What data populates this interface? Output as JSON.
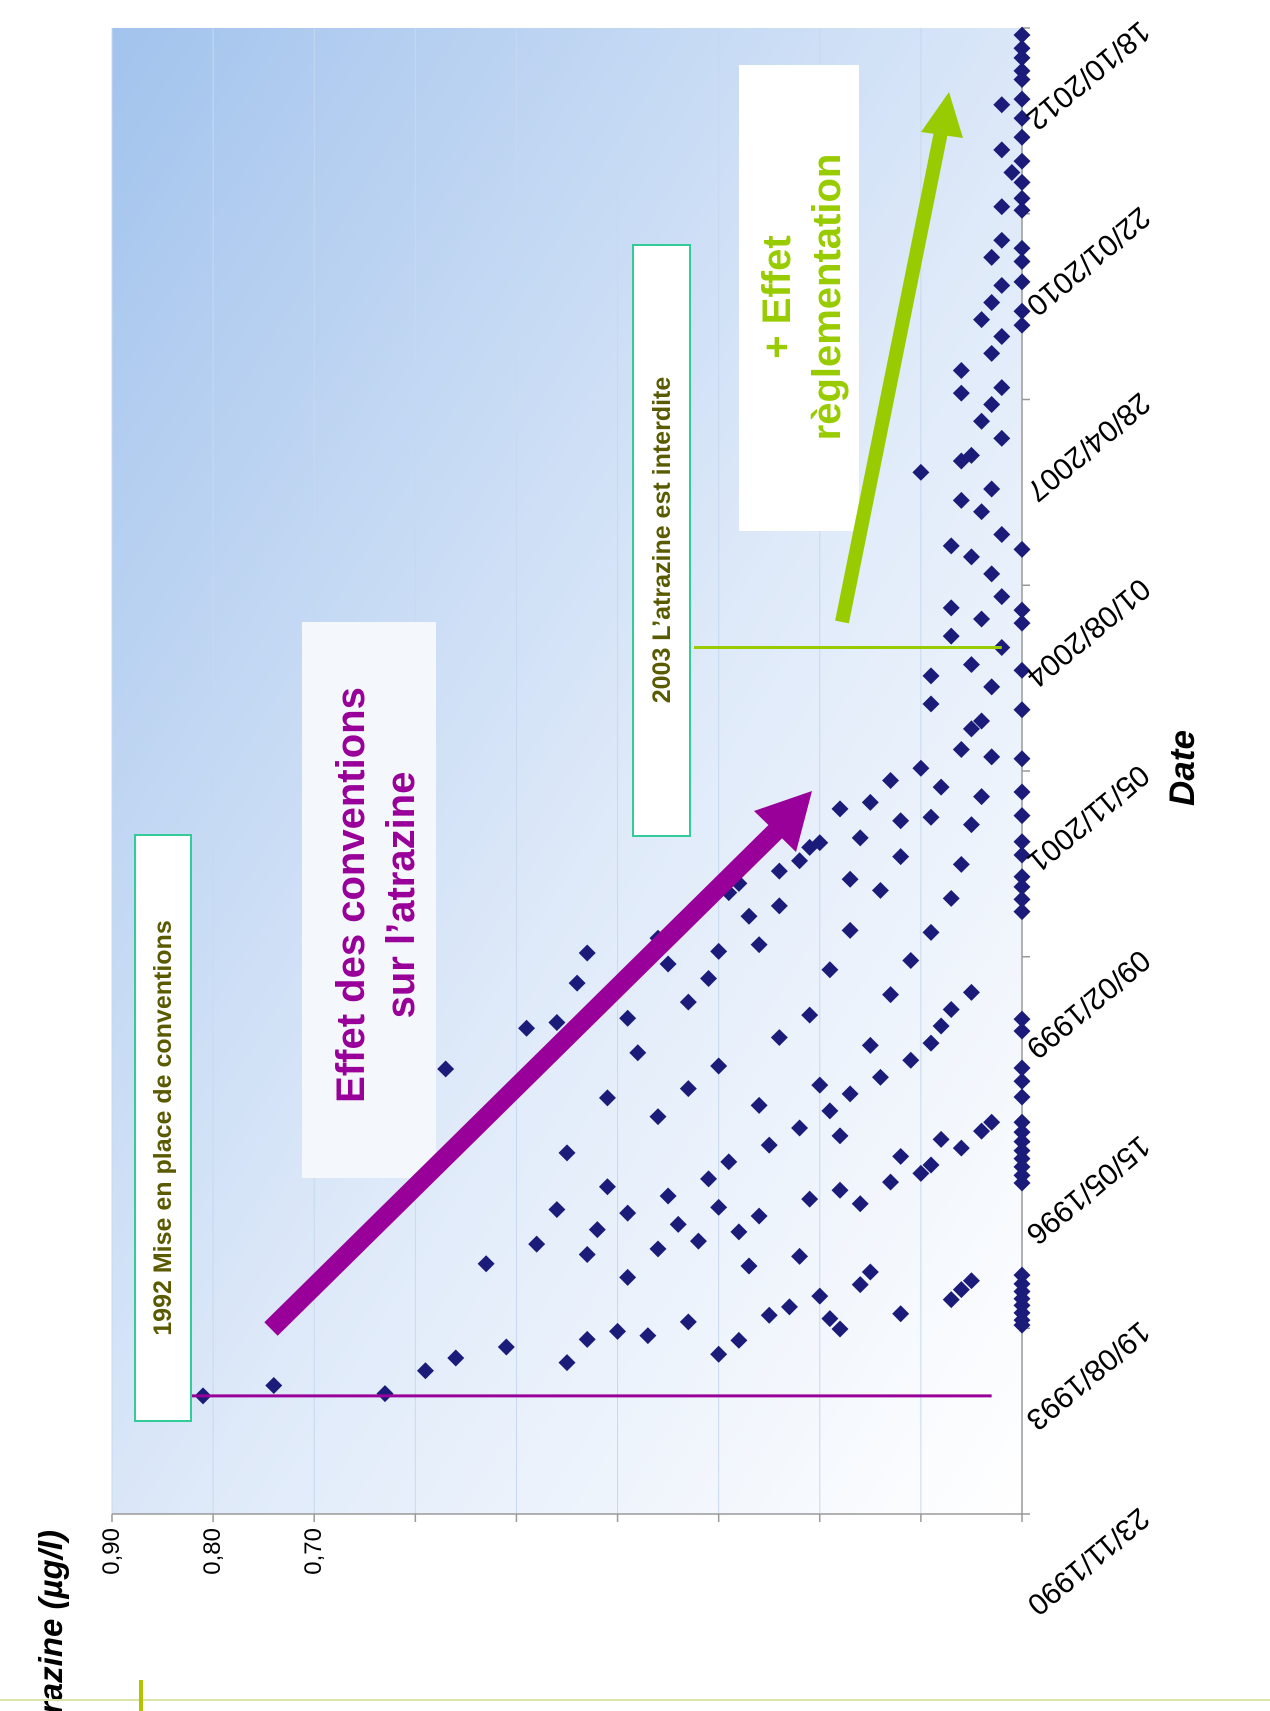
{
  "chart_data": {
    "type": "scatter",
    "orientation": "rotated-90-clockwise",
    "ylabel": "Atrazine (µg/l)",
    "xlabel": "Date",
    "ylim": [
      0,
      0.9
    ],
    "ytick_labels": [
      "0,90",
      "0,80",
      "0,70"
    ],
    "ytick_values": [
      0.9,
      0.8,
      0.7
    ],
    "ygrid_values": [
      0.1,
      0.2,
      0.3,
      0.4,
      0.5,
      0.6,
      0.7,
      0.8,
      0.9
    ],
    "xlim": [
      "1990-11-23",
      "2012-10-18"
    ],
    "xtick_labels": [
      "23/11/1990",
      "19/08/1993",
      "15/05/1996",
      "09/02/1999",
      "05/11/2001",
      "01/08/2004",
      "28/04/2007",
      "22/01/2010",
      "18/10/2012"
    ],
    "xtick_dates": [
      "1990-11-23",
      "1993-08-19",
      "1996-05-15",
      "1999-02-09",
      "2001-11-05",
      "2004-08-01",
      "2007-04-28",
      "2010-01-22",
      "2012-10-18"
    ],
    "grid": true,
    "marker_color": "#1b1b7a",
    "series": [
      {
        "points": [
          [
            "1993-09-05",
            0.0
          ],
          [
            "1993-10-02",
            0.0
          ],
          [
            "1993-11-10",
            0.0
          ],
          [
            "1993-12-20",
            0.0
          ],
          [
            "1994-01-25",
            0.0
          ],
          [
            "1994-03-05",
            0.0
          ],
          [
            "1994-04-15",
            0.0
          ],
          [
            "1994-06-01",
            0.0
          ],
          [
            "1995-10-10",
            0.0
          ],
          [
            "1995-11-20",
            0.0
          ],
          [
            "1996-01-05",
            0.0
          ],
          [
            "1996-02-18",
            0.0
          ],
          [
            "1996-04-01",
            0.0
          ],
          [
            "1996-05-20",
            0.0
          ],
          [
            "1996-07-10",
            0.0
          ],
          [
            "1996-09-01",
            0.0
          ],
          [
            "1997-01-15",
            0.0
          ],
          [
            "1997-04-10",
            0.0
          ],
          [
            "1997-06-20",
            0.0
          ],
          [
            "1998-01-05",
            0.0
          ],
          [
            "1998-03-10",
            0.0
          ],
          [
            "1999-10-10",
            0.0
          ],
          [
            "1999-12-15",
            0.0
          ],
          [
            "2000-02-20",
            0.0
          ],
          [
            "2000-04-15",
            0.0
          ],
          [
            "2000-08-10",
            0.0
          ],
          [
            "2000-10-20",
            0.0
          ],
          [
            "2001-03-10",
            0.0
          ],
          [
            "2001-07-15",
            0.0
          ],
          [
            "2002-01-10",
            0.0
          ],
          [
            "2002-10-01",
            0.0
          ],
          [
            "2003-05-01",
            0.0
          ],
          [
            "2004-01-10",
            0.0
          ],
          [
            "2004-03-20",
            0.0
          ],
          [
            "2005-02-10",
            0.0
          ],
          [
            "2008-06-01",
            0.0
          ],
          [
            "2008-08-15",
            0.0
          ],
          [
            "2009-01-20",
            0.0
          ],
          [
            "2009-05-10",
            0.0
          ],
          [
            "2009-07-20",
            0.0
          ],
          [
            "2010-02-10",
            0.0
          ],
          [
            "2010-04-15",
            0.0
          ],
          [
            "2010-07-10",
            0.0
          ],
          [
            "2010-11-01",
            0.0
          ],
          [
            "2011-03-10",
            0.0
          ],
          [
            "2011-06-20",
            0.0
          ],
          [
            "2011-10-01",
            0.0
          ],
          [
            "2012-01-15",
            0.0
          ],
          [
            "2012-03-01",
            0.0
          ],
          [
            "2012-05-10",
            0.0
          ],
          [
            "2012-07-01",
            0.0
          ],
          [
            "2012-09-10",
            0.0
          ],
          [
            "1992-08-20",
            0.81
          ],
          [
            "1992-10-15",
            0.74
          ],
          [
            "1992-09-01",
            0.63
          ],
          [
            "1993-01-02",
            0.59
          ],
          [
            "1993-03-12",
            0.56
          ],
          [
            "1993-05-10",
            0.51
          ],
          [
            "1993-06-20",
            0.43
          ],
          [
            "1993-08-02",
            0.4
          ],
          [
            "1993-07-10",
            0.37
          ],
          [
            "1993-09-22",
            0.33
          ],
          [
            "1993-04-01",
            0.3
          ],
          [
            "1993-06-15",
            0.28
          ],
          [
            "1993-10-28",
            0.25
          ],
          [
            "1993-12-12",
            0.23
          ],
          [
            "1994-02-08",
            0.2
          ],
          [
            "1994-04-11",
            0.16
          ],
          [
            "1994-06-18",
            0.15
          ],
          [
            "1993-11-05",
            0.12
          ],
          [
            "1994-01-20",
            0.07
          ],
          [
            "1994-03-15",
            0.06
          ],
          [
            "1994-05-02",
            0.05
          ],
          [
            "1993-10-10",
            0.19
          ],
          [
            "1994-07-20",
            0.27
          ],
          [
            "1994-09-10",
            0.22
          ],
          [
            "1994-10-20",
            0.36
          ],
          [
            "1994-12-01",
            0.32
          ],
          [
            "1995-01-20",
            0.28
          ],
          [
            "1995-03-01",
            0.34
          ],
          [
            "1995-04-15",
            0.26
          ],
          [
            "1995-06-01",
            0.3
          ],
          [
            "1995-07-15",
            0.21
          ],
          [
            "1995-09-01",
            0.18
          ],
          [
            "1995-10-15",
            0.13
          ],
          [
            "1995-12-01",
            0.1
          ],
          [
            "1996-01-15",
            0.09
          ],
          [
            "1996-03-01",
            0.12
          ],
          [
            "1996-04-15",
            0.06
          ],
          [
            "1996-06-01",
            0.08
          ],
          [
            "1996-07-15",
            0.04
          ],
          [
            "1996-09-01",
            0.03
          ],
          [
            "1994-11-15",
            0.48
          ],
          [
            "1995-02-01",
            0.42
          ],
          [
            "1995-05-01",
            0.39
          ],
          [
            "1995-08-01",
            0.35
          ],
          [
            "1995-11-01",
            0.31
          ],
          [
            "1996-02-01",
            0.29
          ],
          [
            "1996-05-01",
            0.25
          ],
          [
            "1996-08-01",
            0.22
          ],
          [
            "1996-11-01",
            0.19
          ],
          [
            "1997-02-01",
            0.17
          ],
          [
            "1997-05-01",
            0.14
          ],
          [
            "1997-08-01",
            0.11
          ],
          [
            "1997-11-01",
            0.09
          ],
          [
            "1998-02-01",
            0.08
          ],
          [
            "1998-05-01",
            0.07
          ],
          [
            "1998-08-01",
            0.05
          ],
          [
            "1994-08-01",
            0.53
          ],
          [
            "1995-05-20",
            0.46
          ],
          [
            "1996-03-20",
            0.45
          ],
          [
            "1997-01-10",
            0.41
          ],
          [
            "1997-09-10",
            0.38
          ],
          [
            "1998-06-10",
            0.33
          ],
          [
            "1999-03-10",
            0.3
          ],
          [
            "1999-11-10",
            0.24
          ],
          [
            "1997-06-15",
            0.57
          ],
          [
            "1998-01-20",
            0.49
          ],
          [
            "1998-09-20",
            0.44
          ],
          [
            "1999-05-20",
            0.36
          ],
          [
            "2000-01-20",
            0.29
          ],
          [
            "2000-09-20",
            0.21
          ],
          [
            "2001-05-20",
            0.15
          ],
          [
            "2001-11-20",
            0.1
          ],
          [
            "1998-11-10",
            0.7
          ],
          [
            "1999-03-01",
            0.43
          ],
          [
            "1999-08-10",
            0.34
          ],
          [
            "2000-03-10",
            0.28
          ],
          [
            "2000-07-10",
            0.22
          ],
          [
            "2000-11-10",
            0.16
          ],
          [
            "2001-02-10",
            0.12
          ],
          [
            "2001-08-10",
            0.08
          ],
          [
            "1993-02-15",
            0.45
          ],
          [
            "1993-08-15",
            0.18
          ],
          [
            "1994-05-20",
            0.39
          ],
          [
            "1995-06-20",
            0.16
          ],
          [
            "1996-06-20",
            0.18
          ],
          [
            "1997-03-20",
            0.2
          ],
          [
            "1997-10-20",
            0.15
          ],
          [
            "1998-07-20",
            0.13
          ],
          [
            "1999-01-20",
            0.11
          ],
          [
            "1999-06-20",
            0.09
          ],
          [
            "1999-12-20",
            0.07
          ],
          [
            "2000-06-20",
            0.06
          ],
          [
            "2001-01-20",
            0.05
          ],
          [
            "2001-06-20",
            0.04
          ],
          [
            "2002-01-20",
            0.03
          ],
          [
            "2002-06-20",
            0.05
          ],
          [
            "1998-03-15",
            0.39
          ],
          [
            "1998-10-15",
            0.31
          ],
          [
            "1999-04-15",
            0.26
          ],
          [
            "1999-09-15",
            0.27
          ],
          [
            "2000-05-15",
            0.24
          ],
          [
            "2000-10-15",
            0.2
          ],
          [
            "2001-04-15",
            0.18
          ],
          [
            "2001-09-15",
            0.13
          ],
          [
            "1997-07-01",
            0.3
          ],
          [
            "1997-12-01",
            0.24
          ],
          [
            "1998-04-01",
            0.21
          ],
          [
            "1998-12-01",
            0.19
          ],
          [
            "1999-07-01",
            0.17
          ],
          [
            "2000-02-01",
            0.14
          ],
          [
            "2000-08-01",
            0.12
          ],
          [
            "2001-03-01",
            0.09
          ],
          [
            "2002-03-01",
            0.06
          ],
          [
            "2002-08-01",
            0.04
          ],
          [
            "2003-02-01",
            0.03
          ],
          [
            "2003-06-01",
            0.05
          ],
          [
            "2003-09-01",
            0.02
          ],
          [
            "2004-02-01",
            0.04
          ],
          [
            "2004-06-01",
            0.02
          ],
          [
            "2004-10-01",
            0.03
          ],
          [
            "2005-01-01",
            0.05
          ],
          [
            "2005-05-01",
            0.02
          ],
          [
            "2005-09-01",
            0.04
          ],
          [
            "2006-01-01",
            0.03
          ],
          [
            "2006-04-01",
            0.1
          ],
          [
            "2006-07-01",
            0.05
          ],
          [
            "2006-10-01",
            0.02
          ],
          [
            "2007-01-01",
            0.04
          ],
          [
            "2007-04-01",
            0.03
          ],
          [
            "2007-07-01",
            0.02
          ],
          [
            "2007-10-01",
            0.06
          ],
          [
            "2008-01-01",
            0.03
          ],
          [
            "2008-04-01",
            0.02
          ],
          [
            "2008-07-01",
            0.04
          ],
          [
            "2008-10-01",
            0.03
          ],
          [
            "2009-01-01",
            0.02
          ],
          [
            "2009-06-01",
            0.03
          ],
          [
            "2009-09-01",
            0.02
          ],
          [
            "2010-03-01",
            0.02
          ],
          [
            "2010-09-01",
            0.01
          ],
          [
            "2011-01-01",
            0.02
          ],
          [
            "2011-09-01",
            0.02
          ],
          [
            "2003-11-01",
            0.07
          ],
          [
            "2004-04-01",
            0.07
          ],
          [
            "2005-03-01",
            0.07
          ],
          [
            "2005-11-01",
            0.06
          ],
          [
            "2006-06-01",
            0.06
          ],
          [
            "2007-06-01",
            0.06
          ],
          [
            "2003-04-01",
            0.09
          ],
          [
            "2002-11-01",
            0.09
          ],
          [
            "1996-12-01",
            0.26
          ],
          [
            "1997-03-01",
            0.33
          ],
          [
            "1995-09-20",
            0.41
          ],
          [
            "1994-09-20",
            0.43
          ],
          [
            "1996-10-01",
            0.36
          ],
          [
            "1998-02-20",
            0.46
          ],
          [
            "1999-01-01",
            0.35
          ],
          [
            "2000-04-01",
            0.17
          ]
        ]
      }
    ],
    "annotations": {
      "event1992": "1992 Mise en place de conventions",
      "event2003": "2003 L’atrazine est interdite",
      "conventions_line1": "Effet des conventions",
      "conventions_line2": "sur l’atrazine",
      "regulation_line1": "+ Effet",
      "regulation_line2": "règlementation"
    },
    "colors": {
      "purple": "#990099",
      "green": "#99cc00",
      "teal_border": "#33cc99",
      "label_olive": "#5a5a00",
      "gradient_dark": "#a7c7ee",
      "gradient_light": "#ffffff"
    }
  }
}
